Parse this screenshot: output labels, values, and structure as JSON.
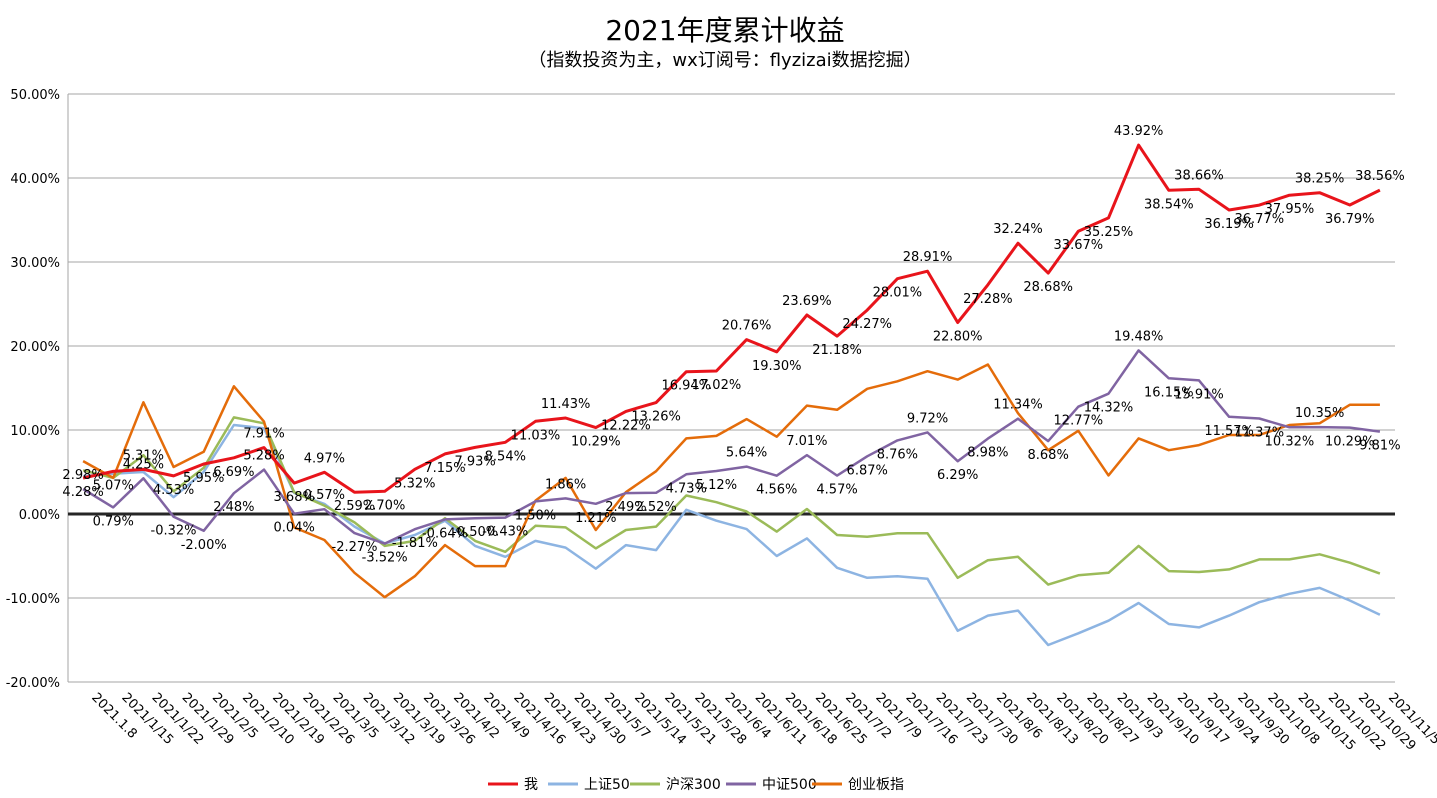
{
  "chart_data": {
    "type": "line",
    "title": "2021年度累计收益",
    "subtitle": "（指数投资为主，wx订阅号：flyzizai数据挖掘）",
    "ylim": [
      -20,
      50
    ],
    "yticks": [
      -20,
      -10,
      0,
      10,
      20,
      30,
      40,
      50
    ],
    "ytick_labels": [
      "-20.00%",
      "-10.00%",
      "0.00%",
      "10.00%",
      "20.00%",
      "30.00%",
      "40.00%",
      "50.00%"
    ],
    "categories": [
      "2021.1.8",
      "2021/1/15",
      "2021/1/22",
      "2021/1/29",
      "2021/2/5",
      "2021/2/10",
      "2021/2/19",
      "2021/2/26",
      "2021/3/5",
      "2021/3/12",
      "2021/3/19",
      "2021/3/26",
      "2021/4/2",
      "2021/4/9",
      "2021/4/16",
      "2021/4/23",
      "2021/4/30",
      "2021/5/7",
      "2021/5/14",
      "2021/5/21",
      "2021/5/28",
      "2021/6/4",
      "2021/6/11",
      "2021/6/18",
      "2021/6/25",
      "2021/7/2",
      "2021/7/9",
      "2021/7/16",
      "2021/7/23",
      "2021/7/30",
      "2021/8/6",
      "2021/8/13",
      "2021/8/20",
      "2021/8/27",
      "2021/9/3",
      "2021/9/10",
      "2021/9/17",
      "2021/9/24",
      "2021/9/30",
      "2021/10/8",
      "2021/10/15",
      "2021/10/22",
      "2021/10/29",
      "2021/11/5"
    ],
    "series": [
      {
        "name": "我",
        "color": "#e8141b",
        "width": 3,
        "values": [
          4.28,
          5.07,
          5.31,
          4.53,
          5.95,
          6.69,
          7.91,
          3.68,
          4.97,
          2.59,
          2.7,
          5.32,
          7.15,
          7.93,
          8.54,
          11.03,
          11.43,
          10.29,
          12.22,
          13.26,
          16.94,
          17.02,
          20.76,
          19.3,
          23.69,
          21.18,
          24.27,
          28.01,
          28.91,
          22.8,
          27.28,
          32.24,
          28.68,
          33.67,
          35.25,
          43.92,
          38.54,
          38.66,
          36.19,
          36.77,
          37.95,
          38.25,
          36.79,
          38.56
        ],
        "labels": [
          "4.28%",
          "5.07%",
          "5.31%",
          "4.53%",
          "5.95%",
          "6.69%",
          "7.91%",
          "3.68%",
          "4.97%",
          "2.59%",
          "2.70%",
          "5.32%",
          "7.15%",
          "7.93%",
          "8.54%",
          "11.03%",
          "11.43%",
          "10.29%",
          "12.22%",
          "13.26%",
          "16.94%",
          "17.02%",
          "20.76%",
          "19.30%",
          "23.69%",
          "21.18%",
          "24.27%",
          "28.01%",
          "28.91%",
          "22.80%",
          "27.28%",
          "32.24%",
          "28.68%",
          "33.67%",
          "35.25%",
          "43.92%",
          "38.54%",
          "38.66%",
          "36.19%",
          "36.77%",
          "37.95%",
          "38.25%",
          "36.79%",
          "38.56%"
        ]
      },
      {
        "name": "上证50",
        "color": "#8db4e2",
        "width": 2.5,
        "values": [
          4.5,
          4.8,
          5.0,
          2.0,
          5.0,
          10.6,
          10.2,
          2.5,
          1.2,
          -1.5,
          -3.5,
          -2.5,
          -0.8,
          -3.8,
          -5.1,
          -3.2,
          -4.0,
          -6.5,
          -3.7,
          -4.3,
          0.5,
          -0.8,
          -1.8,
          -5.0,
          -2.9,
          -6.4,
          -7.6,
          -7.4,
          -7.7,
          -13.9,
          -12.1,
          -11.5,
          -15.6,
          -14.2,
          -12.7,
          -10.6,
          -13.1,
          -13.5,
          -12.1,
          -10.5,
          -9.5,
          -8.8,
          -10.3,
          -12.0
        ]
      },
      {
        "name": "沪深300",
        "color": "#9bbb59",
        "width": 2.5,
        "values": [
          5.2,
          4.3,
          7.0,
          2.7,
          5.5,
          11.5,
          10.8,
          2.6,
          1.0,
          -1.0,
          -3.8,
          -3.2,
          -0.5,
          -3.2,
          -4.5,
          -1.4,
          -1.6,
          -4.1,
          -1.9,
          -1.5,
          2.2,
          1.4,
          0.3,
          -2.1,
          0.6,
          -2.5,
          -2.7,
          -2.3,
          -2.3,
          -7.6,
          -5.5,
          -5.1,
          -8.4,
          -7.3,
          -7.0,
          -3.8,
          -6.8,
          -6.9,
          -6.6,
          -5.4,
          -5.4,
          -4.8,
          -5.8,
          -7.1
        ]
      },
      {
        "name": "中证500",
        "color": "#8064a2",
        "width": 2.5,
        "values": [
          2.98,
          0.79,
          4.25,
          -0.32,
          -2.0,
          2.48,
          5.28,
          0.04,
          0.57,
          -2.27,
          -3.52,
          -1.81,
          -0.64,
          -0.5,
          -0.43,
          1.5,
          1.86,
          1.21,
          2.49,
          2.52,
          4.73,
          5.12,
          5.64,
          4.56,
          7.01,
          4.57,
          6.87,
          8.76,
          9.72,
          6.29,
          8.98,
          11.34,
          8.68,
          12.77,
          14.32,
          19.48,
          16.15,
          15.91,
          11.57,
          11.37,
          10.32,
          10.35,
          10.29,
          9.81
        ],
        "labels": [
          "2.98%",
          "0.79%",
          "4.25%",
          "-0.32%",
          "-2.00%",
          "2.48%",
          "5.28%",
          "0.04%",
          "0.57%",
          "-2.27%",
          "-3.52%",
          "-1.81%",
          "-0.64%",
          "-0.50%",
          "-0.43%",
          "1.50%",
          "1.86%",
          "1.21%",
          "2.49%",
          "2.52%",
          "4.73%",
          "5.12%",
          "5.64%",
          "4.56%",
          "7.01%",
          "4.57%",
          "6.87%",
          "8.76%",
          "9.72%",
          "6.29%",
          "8.98%",
          "11.34%",
          "8.68%",
          "12.77%",
          "14.32%",
          "19.48%",
          "16.15%",
          "15.91%",
          "11.57%",
          "11.37%",
          "10.32%",
          "10.35%",
          "10.29%",
          "9.81%"
        ]
      },
      {
        "name": "创业板指",
        "color": "#e46c0a",
        "width": 2.5,
        "values": [
          6.3,
          4.3,
          13.3,
          5.6,
          7.4,
          15.2,
          11.0,
          -1.6,
          -3.1,
          -7.0,
          -9.9,
          -7.4,
          -3.7,
          -6.2,
          -6.2,
          1.6,
          4.3,
          -1.9,
          2.6,
          5.1,
          9.0,
          9.3,
          11.3,
          9.2,
          12.9,
          12.4,
          14.9,
          15.8,
          17.0,
          16.0,
          17.8,
          12.0,
          7.6,
          9.9,
          4.6,
          9.0,
          7.6,
          8.2,
          9.4,
          9.4,
          10.6,
          10.8,
          13.0,
          13.0
        ]
      }
    ],
    "legend": [
      "我",
      "上证50",
      "沪深300",
      "中证500",
      "创业板指"
    ]
  }
}
